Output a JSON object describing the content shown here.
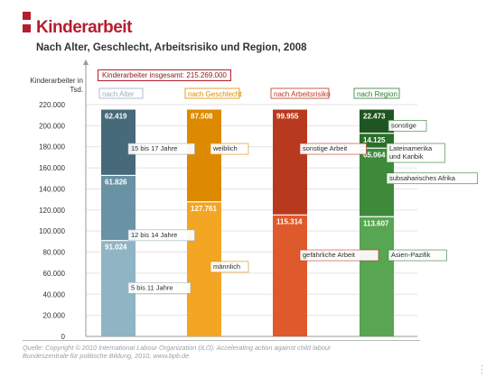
{
  "header": {
    "title": "Kinderarbeit",
    "subtitle": "Nach Alter, Geschlecht, Arbeitsrisiko und Region, 2008"
  },
  "total_label": "Kinderarbeiter insgesamt: 215.269.000",
  "source_line1": "Quelle: Copyright © 2010 International Labour Organization (ILO): Accelerating action against child labour",
  "source_line2": "Bundeszentrale für politische Bildung, 2010, www.bpb.de",
  "chart_data": {
    "type": "bar",
    "stacked": true,
    "ylabel": "Kinderarbeiter in Tsd.",
    "ylim": [
      0,
      220000
    ],
    "yticks": [
      "0",
      "20.000",
      "40.000",
      "60.000",
      "80.000",
      "100.000",
      "120.000",
      "140.000",
      "160.000",
      "180.000",
      "200.000",
      "220.000"
    ],
    "grid": true,
    "categories": [
      "nach Alter",
      "nach Geschlecht",
      "nach Arbeitsrisiko",
      "nach Region"
    ],
    "category_colors": [
      "#9aafbc",
      "#dd8a00",
      "#b83a1e",
      "#2e7d32"
    ],
    "bars": [
      {
        "category": "nach Alter",
        "segments": [
          {
            "label": "5 bis 11 Jahre",
            "value": 91024,
            "value_label": "91.024",
            "color": "#8fb4c3"
          },
          {
            "label": "12 bis 14 Jahre",
            "value": 61826,
            "value_label": "61.826",
            "color": "#6a92a5"
          },
          {
            "label": "15 bis 17 Jahre",
            "value": 62419,
            "value_label": "62.419",
            "color": "#466a79"
          }
        ]
      },
      {
        "category": "nach Geschlecht",
        "segments": [
          {
            "label": "männlich",
            "value": 127761,
            "value_label": "127.761",
            "color": "#f2a623"
          },
          {
            "label": "weiblich",
            "value": 87508,
            "value_label": "87.508",
            "color": "#dd8a00"
          }
        ]
      },
      {
        "category": "nach Arbeitsrisiko",
        "segments": [
          {
            "label": "gefährliche Arbeit",
            "value": 115314,
            "value_label": "115.314",
            "color": "#de5a2c"
          },
          {
            "label": "sonstige Arbeit",
            "value": 99955,
            "value_label": "99.955",
            "color": "#b83a1e"
          }
        ]
      },
      {
        "category": "nach Region",
        "segments": [
          {
            "label": "Asien-Pazifik",
            "value": 113607,
            "value_label": "113.607",
            "color": "#58a552"
          },
          {
            "label": "subsaharisches Afrika",
            "value": 65064,
            "value_label": "65.064",
            "color": "#3d8b3a"
          },
          {
            "label": "Lateinamerika und Karibik",
            "value": 14125,
            "value_label": "14.125",
            "color": "#2a6f29"
          },
          {
            "label": "sonstige",
            "value": 22473,
            "value_label": "22.473",
            "color": "#1f5520"
          }
        ]
      }
    ]
  }
}
